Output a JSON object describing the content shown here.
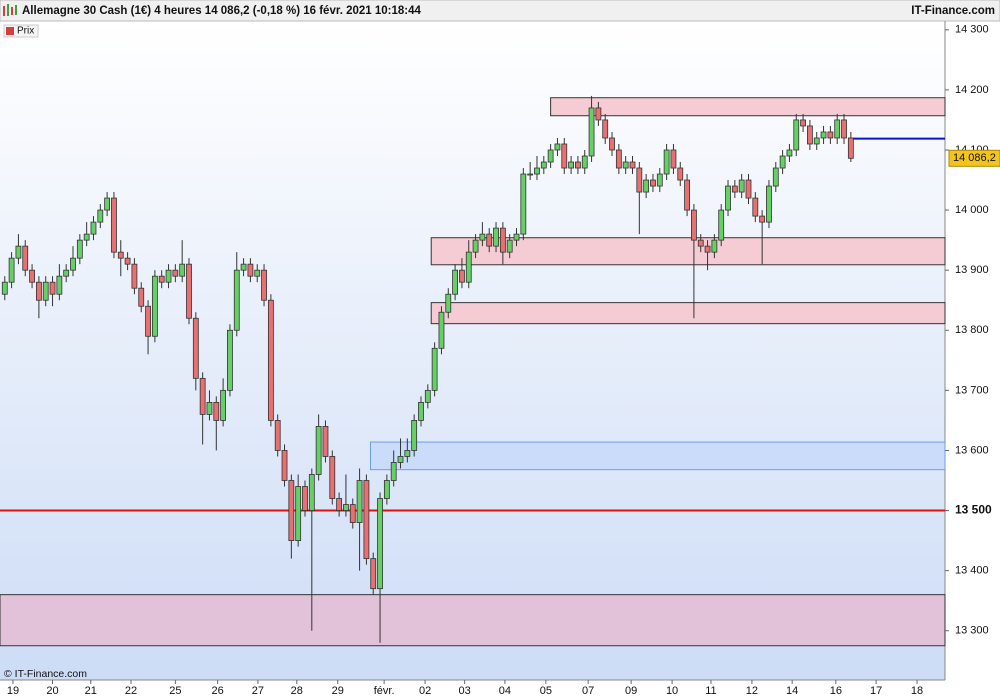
{
  "chart_data": {
    "type": "candlestick",
    "title": "Allemagne 30 Cash (1€) 4 heures 14 086,2 (-0,18 %) 16 févr. 2021 10:18:44",
    "source": "IT-Finance.com",
    "copyright": "© IT-Finance.com",
    "legend": "Prix",
    "up_color": "#66d066",
    "down_color": "#e87070",
    "xlim": [
      -0.7,
      137.8
    ],
    "ylim": [
      13218,
      14313
    ],
    "xticks": [
      {
        "value": 1.2,
        "label": "19"
      },
      {
        "value": 7,
        "label": "20"
      },
      {
        "value": 12.6,
        "label": "21"
      },
      {
        "value": 18.5,
        "label": "22"
      },
      {
        "value": 25,
        "label": "25"
      },
      {
        "value": 31.2,
        "label": "26"
      },
      {
        "value": 37.1,
        "label": "27"
      },
      {
        "value": 42.8,
        "label": "28"
      },
      {
        "value": 48.8,
        "label": "29"
      },
      {
        "value": 55.6,
        "label": "févr."
      },
      {
        "value": 61.6,
        "label": "02"
      },
      {
        "value": 67.4,
        "label": "03"
      },
      {
        "value": 73.3,
        "label": "04"
      },
      {
        "value": 79.3,
        "label": "05"
      },
      {
        "value": 85.5,
        "label": "07"
      },
      {
        "value": 91.8,
        "label": "09"
      },
      {
        "value": 97.8,
        "label": "10"
      },
      {
        "value": 103.5,
        "label": "11"
      },
      {
        "value": 109.5,
        "label": "12"
      },
      {
        "value": 115.4,
        "label": "14"
      },
      {
        "value": 121.8,
        "label": "16"
      },
      {
        "value": 127.7,
        "label": "17"
      },
      {
        "value": 133.7,
        "label": "18"
      }
    ],
    "yticks": [
      {
        "value": 13300,
        "label": "13 300"
      },
      {
        "value": 13400,
        "label": "13 400"
      },
      {
        "value": 13500,
        "label": "13 500"
      },
      {
        "value": 13600,
        "label": "13 600"
      },
      {
        "value": 13700,
        "label": "13 700"
      },
      {
        "value": 13800,
        "label": "13 800"
      },
      {
        "value": 13900,
        "label": "13 900"
      },
      {
        "value": 14000,
        "label": "14 000"
      },
      {
        "value": 14100,
        "label": "14 100"
      },
      {
        "value": 14200,
        "label": "14 200"
      },
      {
        "value": 14300,
        "label": "14 300"
      }
    ],
    "zones": [
      {
        "from": 80,
        "low": 14157,
        "high": 14187,
        "color": "#f6ccd4",
        "edge": "#333333"
      },
      {
        "from": 62.5,
        "low": 13909,
        "high": 13954,
        "color": "#f6ccd4",
        "edge": "#333333"
      },
      {
        "from": 62.5,
        "low": 13811,
        "high": 13846,
        "color": "#f6ccd4",
        "edge": "#333333"
      },
      {
        "from": 53.6,
        "low": 13568,
        "high": 13614,
        "color": "#cadcfa",
        "edge": "#6e9ee6"
      },
      {
        "from": -0.7,
        "low": 13275,
        "high": 13360,
        "color": "#e2c2d8",
        "edge": "#333333"
      }
    ],
    "hlines": [
      {
        "value": 13500,
        "color": "#e01010",
        "from": -0.7
      },
      {
        "value": 14119,
        "color": "#1010d0",
        "from": 124
      }
    ],
    "last_price": {
      "value": 14086.2,
      "label": "14 086,2"
    },
    "candles": [
      [
        13860,
        13890,
        13850,
        13880
      ],
      [
        13880,
        13930,
        13870,
        13920
      ],
      [
        13920,
        13960,
        13910,
        13940
      ],
      [
        13940,
        13950,
        13890,
        13900
      ],
      [
        13900,
        13910,
        13870,
        13880
      ],
      [
        13880,
        13890,
        13820,
        13850
      ],
      [
        13850,
        13890,
        13840,
        13880
      ],
      [
        13880,
        13890,
        13840,
        13860
      ],
      [
        13860,
        13910,
        13850,
        13890
      ],
      [
        13890,
        13910,
        13880,
        13900
      ],
      [
        13900,
        13940,
        13890,
        13920
      ],
      [
        13920,
        13960,
        13910,
        13950
      ],
      [
        13950,
        13980,
        13940,
        13960
      ],
      [
        13960,
        13990,
        13950,
        13980
      ],
      [
        13980,
        14010,
        13970,
        14000
      ],
      [
        14000,
        14030,
        13990,
        14020
      ],
      [
        14020,
        14030,
        13920,
        13930
      ],
      [
        13930,
        13950,
        13890,
        13920
      ],
      [
        13920,
        13930,
        13900,
        13910
      ],
      [
        13910,
        13920,
        13860,
        13870
      ],
      [
        13870,
        13880,
        13830,
        13840
      ],
      [
        13840,
        13850,
        13760,
        13790
      ],
      [
        13790,
        13900,
        13780,
        13890
      ],
      [
        13890,
        13900,
        13870,
        13880
      ],
      [
        13880,
        13910,
        13870,
        13900
      ],
      [
        13900,
        13910,
        13880,
        13890
      ],
      [
        13890,
        13950,
        13880,
        13910
      ],
      [
        13910,
        13920,
        13810,
        13820
      ],
      [
        13820,
        13830,
        13700,
        13720
      ],
      [
        13720,
        13730,
        13610,
        13660
      ],
      [
        13660,
        13700,
        13650,
        13680
      ],
      [
        13680,
        13690,
        13600,
        13650
      ],
      [
        13650,
        13720,
        13640,
        13700
      ],
      [
        13700,
        13810,
        13690,
        13800
      ],
      [
        13800,
        13930,
        13790,
        13900
      ],
      [
        13900,
        13920,
        13890,
        13910
      ],
      [
        13910,
        13920,
        13880,
        13890
      ],
      [
        13890,
        13910,
        13880,
        13900
      ],
      [
        13900,
        13910,
        13840,
        13850
      ],
      [
        13850,
        13860,
        13640,
        13650
      ],
      [
        13650,
        13660,
        13590,
        13600
      ],
      [
        13600,
        13610,
        13540,
        13550
      ],
      [
        13550,
        13560,
        13420,
        13450
      ],
      [
        13450,
        13560,
        13440,
        13540
      ],
      [
        13540,
        13550,
        13490,
        13500
      ],
      [
        13500,
        13570,
        13300,
        13560
      ],
      [
        13560,
        13660,
        13550,
        13640
      ],
      [
        13640,
        13650,
        13580,
        13590
      ],
      [
        13590,
        13600,
        13510,
        13520
      ],
      [
        13520,
        13530,
        13490,
        13500
      ],
      [
        13500,
        13560,
        13490,
        13510
      ],
      [
        13510,
        13520,
        13470,
        13480
      ],
      [
        13480,
        13570,
        13400,
        13550
      ],
      [
        13550,
        13560,
        13410,
        13420
      ],
      [
        13420,
        13430,
        13360,
        13370
      ],
      [
        13370,
        13530,
        13280,
        13520
      ],
      [
        13520,
        13560,
        13510,
        13550
      ],
      [
        13550,
        13600,
        13540,
        13580
      ],
      [
        13580,
        13620,
        13570,
        13590
      ],
      [
        13590,
        13620,
        13580,
        13600
      ],
      [
        13600,
        13660,
        13590,
        13650
      ],
      [
        13650,
        13690,
        13640,
        13680
      ],
      [
        13680,
        13710,
        13670,
        13700
      ],
      [
        13700,
        13780,
        13690,
        13770
      ],
      [
        13770,
        13840,
        13760,
        13830
      ],
      [
        13830,
        13870,
        13820,
        13860
      ],
      [
        13860,
        13910,
        13850,
        13900
      ],
      [
        13900,
        13920,
        13870,
        13880
      ],
      [
        13880,
        13950,
        13870,
        13930
      ],
      [
        13930,
        13960,
        13920,
        13950
      ],
      [
        13950,
        13980,
        13940,
        13960
      ],
      [
        13960,
        13970,
        13930,
        13940
      ],
      [
        13940,
        13980,
        13930,
        13970
      ],
      [
        13970,
        13980,
        13910,
        13930
      ],
      [
        13930,
        13960,
        13920,
        13950
      ],
      [
        13950,
        13970,
        13940,
        13960
      ],
      [
        13960,
        14070,
        13950,
        14060
      ],
      [
        14060,
        14080,
        14050,
        14060
      ],
      [
        14060,
        14090,
        14050,
        14070
      ],
      [
        14070,
        14090,
        14060,
        14080
      ],
      [
        14080,
        14110,
        14070,
        14100
      ],
      [
        14100,
        14120,
        14090,
        14110
      ],
      [
        14110,
        14120,
        14060,
        14070
      ],
      [
        14070,
        14090,
        14060,
        14080
      ],
      [
        14080,
        14090,
        14060,
        14070
      ],
      [
        14070,
        14100,
        14060,
        14090
      ],
      [
        14090,
        14190,
        14080,
        14170
      ],
      [
        14170,
        14180,
        14140,
        14150
      ],
      [
        14150,
        14160,
        14110,
        14120
      ],
      [
        14120,
        14130,
        14090,
        14100
      ],
      [
        14100,
        14110,
        14060,
        14070
      ],
      [
        14070,
        14090,
        14060,
        14080
      ],
      [
        14080,
        14090,
        14060,
        14070
      ],
      [
        14070,
        14080,
        13960,
        14030
      ],
      [
        14030,
        14060,
        14020,
        14050
      ],
      [
        14050,
        14060,
        14030,
        14040
      ],
      [
        14040,
        14070,
        14030,
        14060
      ],
      [
        14060,
        14110,
        14050,
        14100
      ],
      [
        14100,
        14110,
        14060,
        14070
      ],
      [
        14070,
        14080,
        14040,
        14050
      ],
      [
        14050,
        14060,
        13990,
        14000
      ],
      [
        14000,
        14010,
        13820,
        13950
      ],
      [
        13950,
        13960,
        13930,
        13940
      ],
      [
        13940,
        13950,
        13900,
        13930
      ],
      [
        13930,
        13960,
        13920,
        13950
      ],
      [
        13950,
        14010,
        13940,
        14000
      ],
      [
        14000,
        14050,
        13990,
        14040
      ],
      [
        14040,
        14050,
        14020,
        14030
      ],
      [
        14030,
        14060,
        14020,
        14050
      ],
      [
        14050,
        14060,
        14010,
        14020
      ],
      [
        14020,
        14030,
        13980,
        13990
      ],
      [
        13990,
        14000,
        13910,
        13980
      ],
      [
        13980,
        14050,
        13970,
        14040
      ],
      [
        14040,
        14080,
        14030,
        14070
      ],
      [
        14070,
        14100,
        14060,
        14090
      ],
      [
        14090,
        14110,
        14080,
        14100
      ],
      [
        14100,
        14160,
        14090,
        14150
      ],
      [
        14150,
        14160,
        14130,
        14140
      ],
      [
        14140,
        14150,
        14100,
        14110
      ],
      [
        14110,
        14130,
        14100,
        14120
      ],
      [
        14120,
        14140,
        14110,
        14130
      ],
      [
        14130,
        14140,
        14110,
        14120
      ],
      [
        14120,
        14160,
        14110,
        14150
      ],
      [
        14150,
        14160,
        14110,
        14120
      ],
      [
        14120,
        14130,
        14080,
        14086.2
      ]
    ]
  }
}
